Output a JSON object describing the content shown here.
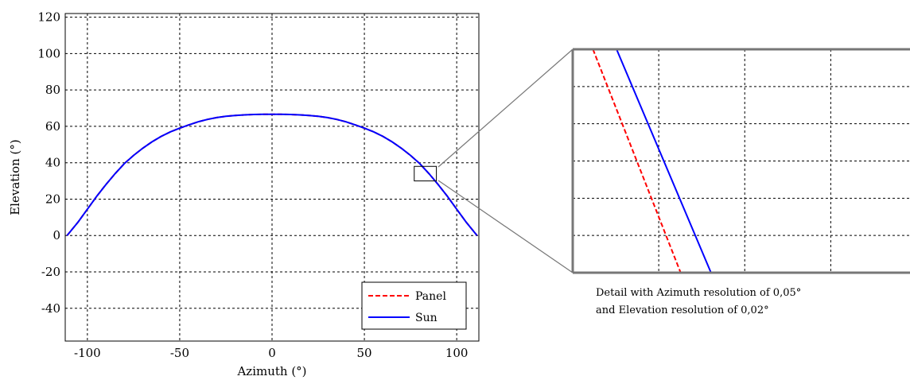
{
  "chart_data": [
    {
      "type": "line",
      "title": "",
      "xlabel": "Azimuth (°)",
      "ylabel": "Elevation (°)",
      "xlim": [
        -112,
        112
      ],
      "ylim": [
        -58,
        122
      ],
      "xticks": [
        -100,
        -50,
        0,
        50,
        100
      ],
      "xtick_labels": [
        "-100",
        "-50",
        "0",
        "50",
        "100"
      ],
      "yticks": [
        -40,
        -20,
        0,
        20,
        40,
        60,
        80,
        100,
        120
      ],
      "ytick_labels": [
        "-40",
        "-20",
        "0",
        "20",
        "40",
        "60",
        "80",
        "100",
        "120"
      ],
      "grid": true,
      "legend_position": "bottom-right",
      "series": [
        {
          "name": "Panel",
          "color": "#ff0000",
          "style": "dashed",
          "x": [
            -111,
            -105,
            -100,
            -95,
            -90,
            -85,
            -80,
            -75,
            -70,
            -65,
            -60,
            -55,
            -50,
            -45,
            -40,
            -35,
            -30,
            -25,
            -20,
            -15,
            -10,
            -5,
            0,
            5,
            10,
            15,
            20,
            25,
            30,
            35,
            40,
            45,
            50,
            55,
            60,
            65,
            70,
            75,
            80,
            85,
            90,
            95,
            100,
            105,
            111
          ],
          "y": [
            0,
            7.5,
            14.5,
            21.5,
            28,
            34,
            39.5,
            44,
            48,
            51.5,
            54.5,
            57,
            59,
            60.8,
            62.5,
            63.8,
            64.8,
            65.5,
            66,
            66.3,
            66.5,
            66.6,
            66.6,
            66.6,
            66.5,
            66.3,
            66,
            65.5,
            64.8,
            63.8,
            62.5,
            60.8,
            59,
            57,
            54.5,
            51.5,
            48,
            44,
            39.5,
            34,
            28,
            21.5,
            14.5,
            7.5,
            0
          ]
        },
        {
          "name": "Sun",
          "color": "#0000ff",
          "style": "solid",
          "x": [
            -111,
            -105,
            -100,
            -95,
            -90,
            -85,
            -80,
            -75,
            -70,
            -65,
            -60,
            -55,
            -50,
            -45,
            -40,
            -35,
            -30,
            -25,
            -20,
            -15,
            -10,
            -5,
            0,
            5,
            10,
            15,
            20,
            25,
            30,
            35,
            40,
            45,
            50,
            55,
            60,
            65,
            70,
            75,
            80,
            85,
            90,
            95,
            100,
            105,
            111
          ],
          "y": [
            0,
            7.5,
            14.5,
            21.5,
            28,
            34,
            39.5,
            44,
            48,
            51.5,
            54.5,
            57,
            59,
            60.8,
            62.5,
            63.8,
            64.8,
            65.5,
            66,
            66.3,
            66.5,
            66.6,
            66.6,
            66.6,
            66.5,
            66.3,
            66,
            65.5,
            64.8,
            63.8,
            62.5,
            60.8,
            59,
            57,
            54.5,
            51.5,
            48,
            44,
            39.5,
            34,
            28,
            21.5,
            14.5,
            7.5,
            0
          ]
        }
      ],
      "annotations": {
        "zoom_region": {
          "xlim": [
            77,
            89
          ],
          "ylim": [
            30,
            38
          ]
        }
      }
    },
    {
      "type": "line",
      "title": "",
      "grid": true,
      "caption": [
        "Detail with Azimuth resolution of 0,05°",
        "and Elevation resolution of 0,02°"
      ],
      "series": [
        {
          "name": "Panel",
          "color": "#ff0000",
          "style": "dashed",
          "x": [
            0.06,
            0.32
          ],
          "y": [
            1.0,
            0.0
          ]
        },
        {
          "name": "Sun",
          "color": "#0000ff",
          "style": "solid",
          "x": [
            0.13,
            0.41
          ],
          "y": [
            1.0,
            0.0
          ]
        }
      ]
    }
  ]
}
